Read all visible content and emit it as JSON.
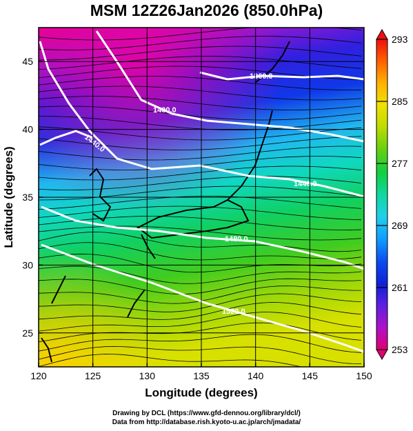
{
  "title": "MSM 12Z26Jan2026 (850.0hPa)",
  "axes": {
    "xlabel": "Longitude (degrees)",
    "ylabel": "Latitude  (degrees)",
    "x_ticks": [
      120,
      125,
      130,
      135,
      140,
      145,
      150
    ],
    "y_ticks": [
      25,
      30,
      35,
      40,
      45
    ],
    "xlim": [
      120,
      150
    ],
    "ylim": [
      22.5,
      47.5
    ]
  },
  "colorbar": {
    "ticks": [
      293,
      285,
      277,
      269,
      261,
      253
    ],
    "range": [
      253,
      293
    ],
    "colors": [
      "#e00070",
      "#b010c8",
      "#6020e0",
      "#1020d8",
      "#0a48ee",
      "#10a0ff",
      "#20d0e8",
      "#10d8a0",
      "#10d040",
      "#60d010",
      "#c0dc00",
      "#f0e000",
      "#ffb000",
      "#ff6000",
      "#ee1010"
    ]
  },
  "contours": [
    {
      "label": "1360.0"
    },
    {
      "label": "1400.0"
    },
    {
      "label": "1440.0"
    },
    {
      "label": "1440.0"
    },
    {
      "label": "1480.0"
    },
    {
      "label": "1520.0"
    }
  ],
  "credits": {
    "line1": "Drawing by DCL (https://www.gfd-dennou.org/library/dcl/)",
    "line2": "Data from http://database.rish.kyoto-u.ac.jp/arch/jmadata/"
  }
}
